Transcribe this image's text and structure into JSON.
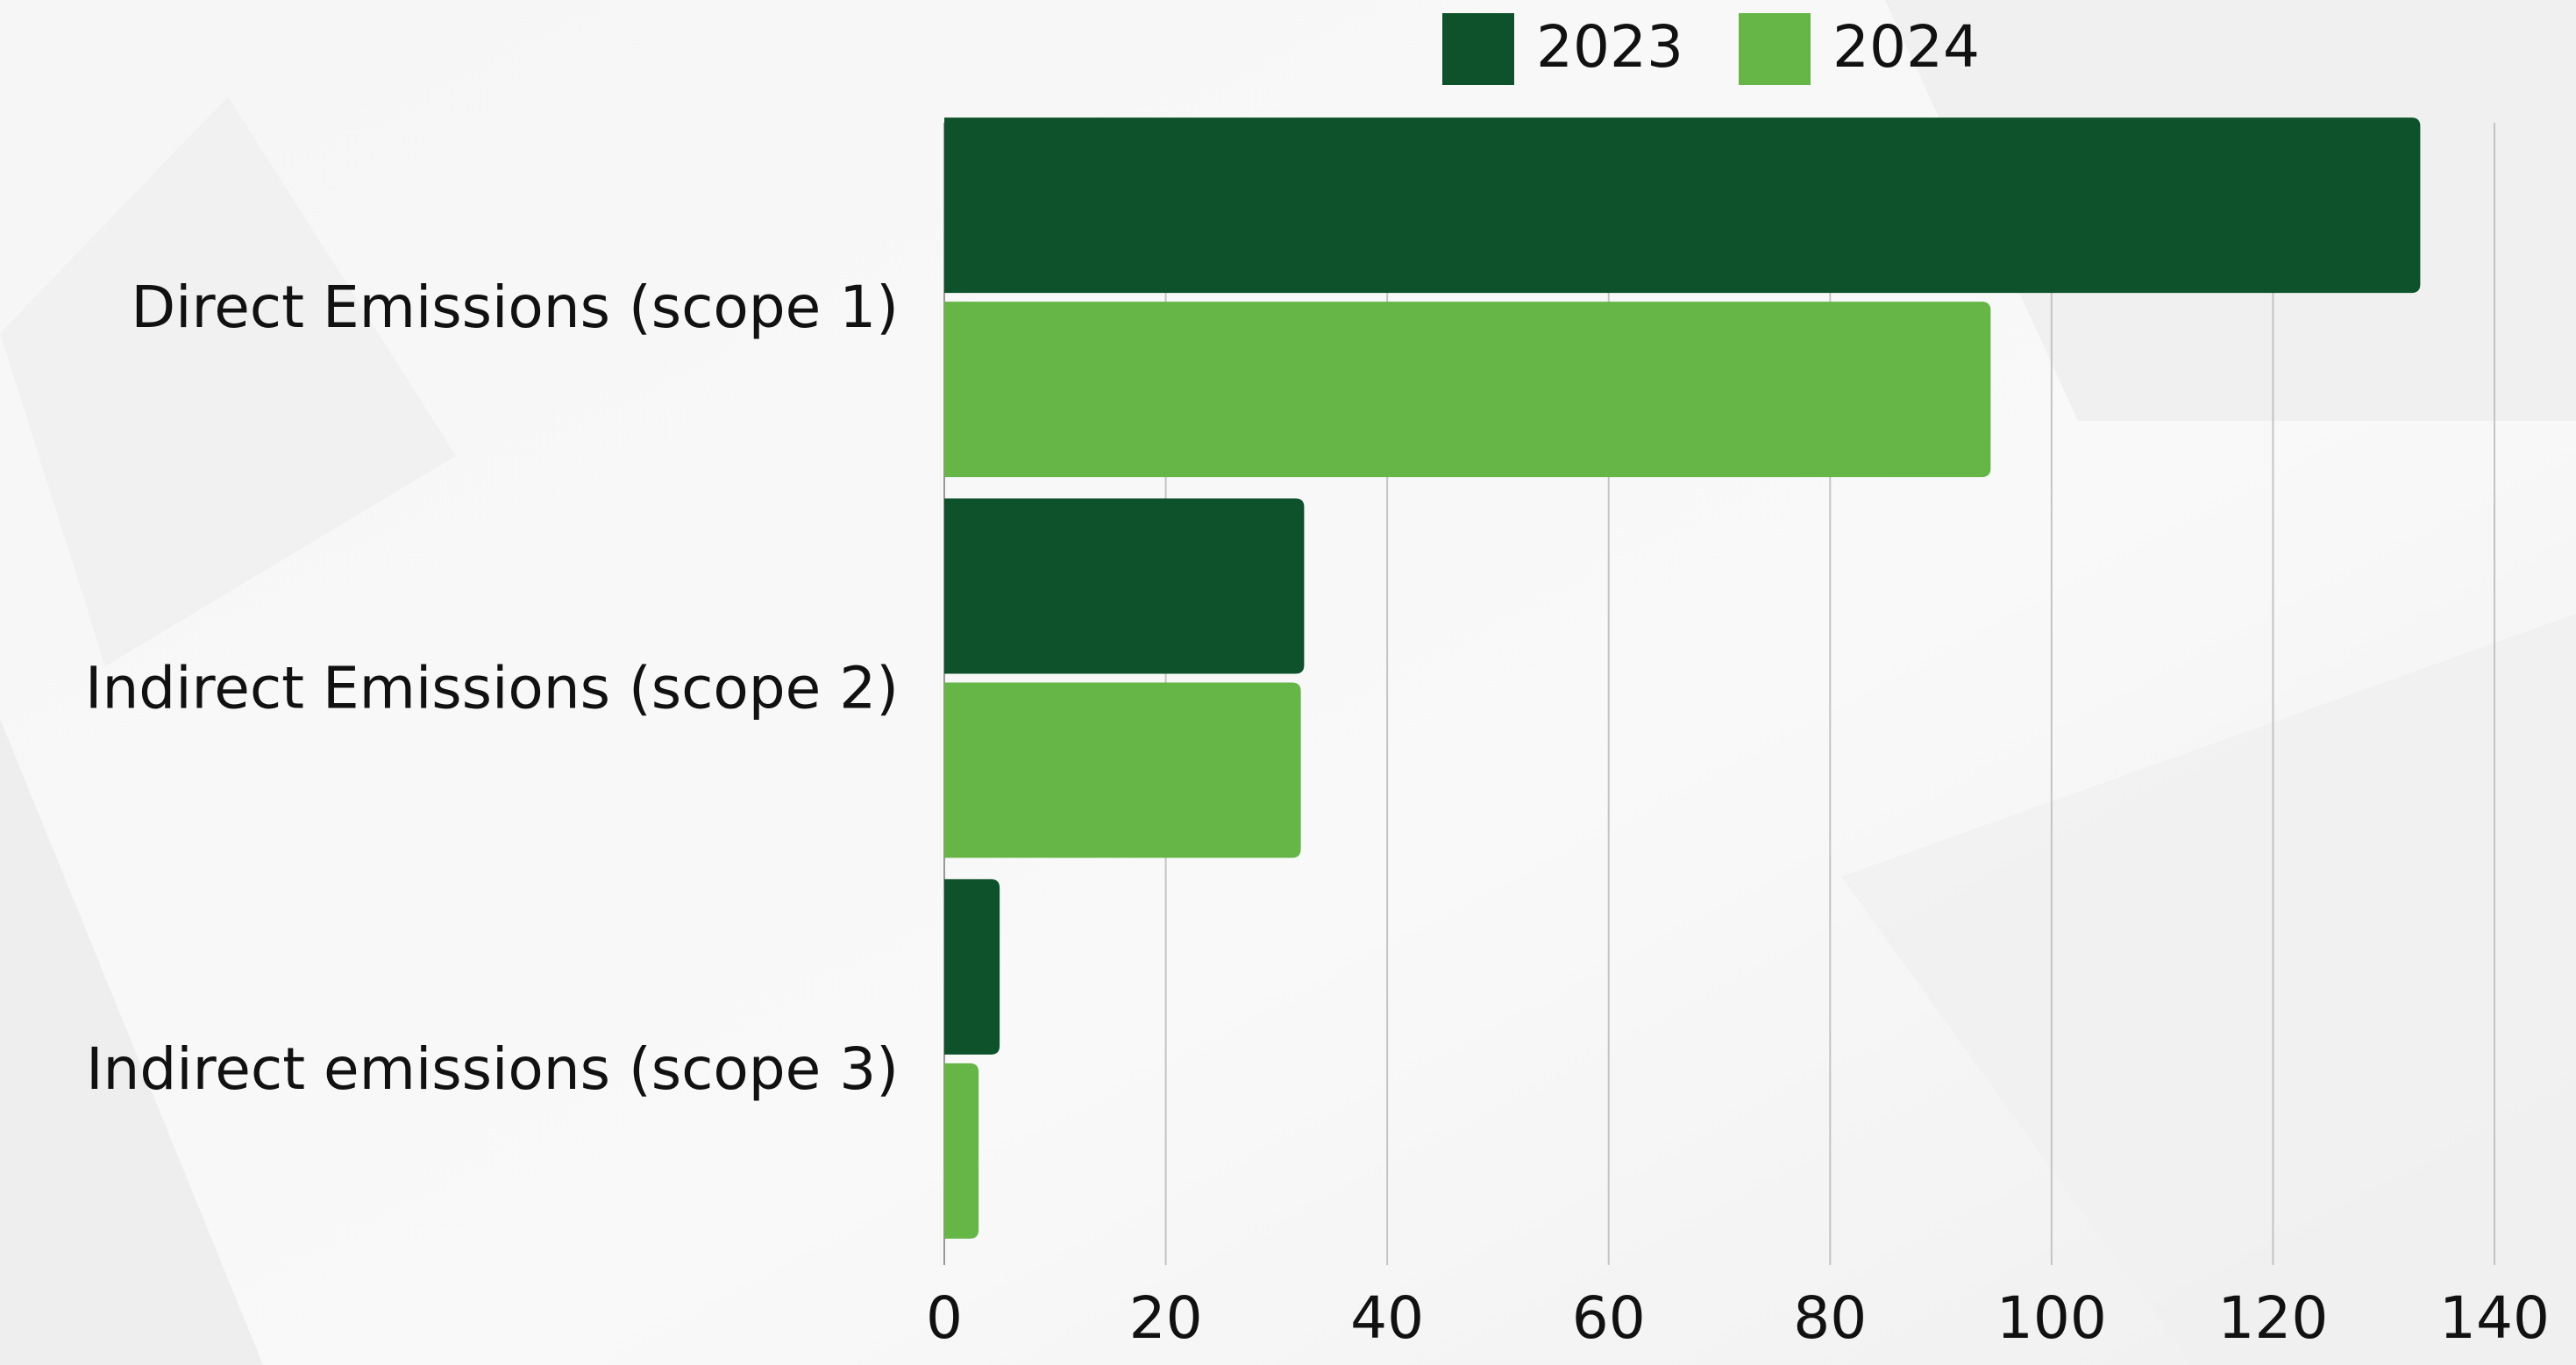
{
  "chart_data": {
    "type": "bar",
    "orientation": "horizontal",
    "categories": [
      "Direct Emissions (scope 1)",
      "Indirect Emissions (scope 2)",
      "Indirect emissions (scope 3)"
    ],
    "series": [
      {
        "name": "2023",
        "color": "#0d522b",
        "values": [
          133.3,
          32.5,
          5
        ]
      },
      {
        "name": "2024",
        "color": "#66b647",
        "values": [
          94.5,
          32.2,
          3.1
        ]
      }
    ],
    "xlim": [
      0,
      140
    ],
    "xticks": [
      0,
      20,
      40,
      60,
      80,
      100,
      120,
      140
    ],
    "grid": true,
    "legend": "top"
  }
}
